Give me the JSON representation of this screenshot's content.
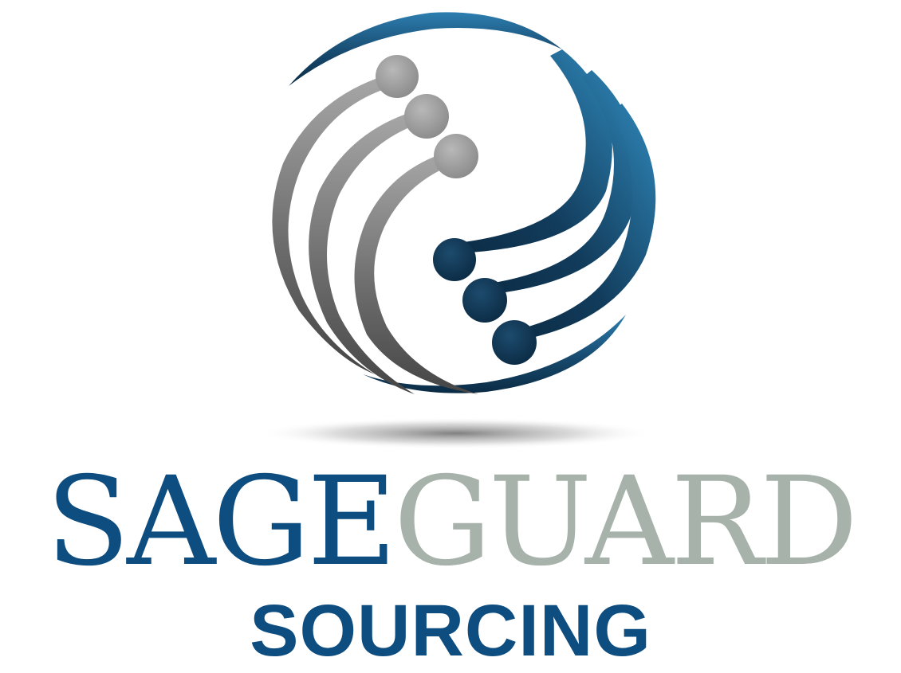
{
  "logo": {
    "word_primary": "SAGE",
    "word_secondary": "GUARD",
    "tagline": "SOURCING",
    "emblem_icon": "circuit-globe-icon",
    "colors": {
      "primary_blue": "#0e4d80",
      "secondary_gray": "#a7b2ab",
      "tagline_blue": "#0e4d80",
      "emblem_dark_blue": "#0b2b44",
      "emblem_light_blue": "#2d7eb0",
      "emblem_gray_dark": "#4a4a4a",
      "emblem_gray_light": "#a8a8a8"
    }
  }
}
